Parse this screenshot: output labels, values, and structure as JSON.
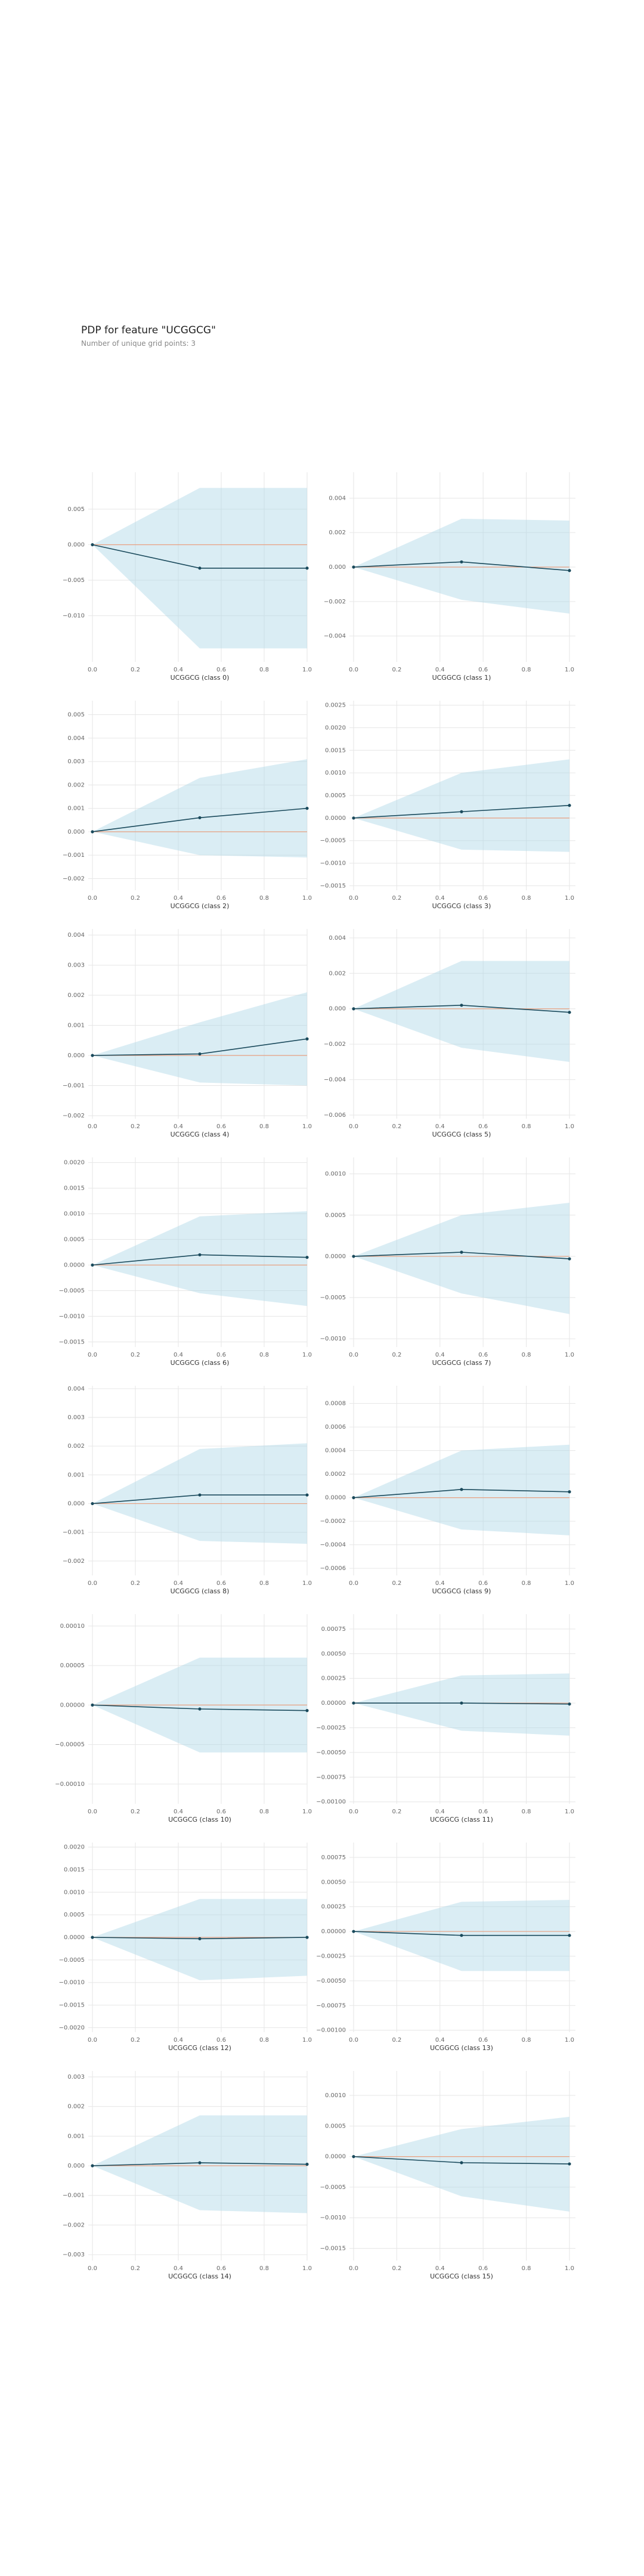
{
  "title": "PDP for feature \"UCGGCG\"",
  "subtitle": "Number of unique grid points: 3",
  "colors": {
    "line": "#1a4a5c",
    "band": "#add8e6",
    "zero_line": "#e8a080",
    "grid": "#e6e6e6"
  },
  "chart_data": [
    {
      "type": "line",
      "xlabel": "UCGGCG (class 0)",
      "x": [
        0,
        0.5,
        1
      ],
      "y": [
        0,
        -0.0033,
        -0.0033
      ],
      "upper": [
        0,
        0.008,
        0.008
      ],
      "lower": [
        0,
        -0.0146,
        -0.0146
      ],
      "ylim": [
        -0.0165,
        0.0102
      ],
      "yticks": [
        "0.005",
        "0.000",
        "−0.005",
        "−0.010"
      ],
      "ytick_values": [
        0.005,
        0,
        -0.005,
        -0.01
      ],
      "xticks": [
        "0.0",
        "0.2",
        "0.4",
        "0.6",
        "0.8",
        "1.0"
      ]
    },
    {
      "type": "line",
      "xlabel": "UCGGCG (class 1)",
      "x": [
        0,
        0.5,
        1
      ],
      "y": [
        0,
        0.0003,
        -0.0002
      ],
      "upper": [
        0,
        0.0028,
        0.0027
      ],
      "lower": [
        0,
        -0.0019,
        -0.0027
      ],
      "ylim": [
        -0.0055,
        0.0055
      ],
      "yticks": [
        "0.004",
        "0.002",
        "0.000",
        "−0.002",
        "−0.004"
      ],
      "ytick_values": [
        0.004,
        0.002,
        0,
        -0.002,
        -0.004
      ],
      "xticks": [
        "0.0",
        "0.2",
        "0.4",
        "0.6",
        "0.8",
        "1.0"
      ]
    },
    {
      "type": "line",
      "xlabel": "UCGGCG (class 2)",
      "x": [
        0,
        0.5,
        1
      ],
      "y": [
        0,
        0.0006,
        0.001
      ],
      "upper": [
        0,
        0.0023,
        0.0031
      ],
      "lower": [
        0,
        -0.001,
        -0.0011
      ],
      "ylim": [
        -0.0025,
        0.0056
      ],
      "yticks": [
        "0.005",
        "0.004",
        "0.003",
        "0.002",
        "0.001",
        "0.000",
        "−0.001",
        "−0.002"
      ],
      "ytick_values": [
        0.005,
        0.004,
        0.003,
        0.002,
        0.001,
        0,
        -0.001,
        -0.002
      ],
      "xticks": [
        "0.0",
        "0.2",
        "0.4",
        "0.6",
        "0.8",
        "1.0"
      ]
    },
    {
      "type": "line",
      "xlabel": "UCGGCG (class 3)",
      "x": [
        0,
        0.5,
        1
      ],
      "y": [
        0,
        0.00014,
        0.00028
      ],
      "upper": [
        0,
        0.001,
        0.0013
      ],
      "lower": [
        0,
        -0.0007,
        -0.00075
      ],
      "ylim": [
        -0.0016,
        0.0026
      ],
      "yticks": [
        "0.0025",
        "0.0020",
        "0.0015",
        "0.0010",
        "0.0005",
        "0.0000",
        "−0.0005",
        "−0.0010",
        "−0.0015"
      ],
      "ytick_values": [
        0.0025,
        0.002,
        0.0015,
        0.001,
        0.0005,
        0,
        -0.0005,
        -0.001,
        -0.0015
      ],
      "xticks": [
        "0.0",
        "0.2",
        "0.4",
        "0.6",
        "0.8",
        "1.0"
      ]
    },
    {
      "type": "line",
      "xlabel": "UCGGCG (class 4)",
      "x": [
        0,
        0.5,
        1
      ],
      "y": [
        0,
        5e-05,
        0.00055
      ],
      "upper": [
        0,
        0.0011,
        0.0021
      ],
      "lower": [
        0,
        -0.0009,
        -0.001
      ],
      "ylim": [
        -0.0021,
        0.0042
      ],
      "yticks": [
        "0.004",
        "0.003",
        "0.002",
        "0.001",
        "0.000",
        "−0.001",
        "−0.002"
      ],
      "ytick_values": [
        0.004,
        0.003,
        0.002,
        0.001,
        0,
        -0.001,
        -0.002
      ],
      "xticks": [
        "0.0",
        "0.2",
        "0.4",
        "0.6",
        "0.8",
        "1.0"
      ]
    },
    {
      "type": "line",
      "xlabel": "UCGGCG (class 5)",
      "x": [
        0,
        0.5,
        1
      ],
      "y": [
        0,
        0.0002,
        -0.0002
      ],
      "upper": [
        0,
        0.0027,
        0.0027
      ],
      "lower": [
        0,
        -0.0022,
        -0.003
      ],
      "ylim": [
        -0.0062,
        0.0045
      ],
      "yticks": [
        "0.004",
        "0.002",
        "0.000",
        "−0.002",
        "−0.004",
        "−0.006"
      ],
      "ytick_values": [
        0.004,
        0.002,
        0,
        -0.002,
        -0.004,
        -0.006
      ],
      "xticks": [
        "0.0",
        "0.2",
        "0.4",
        "0.6",
        "0.8",
        "1.0"
      ]
    },
    {
      "type": "line",
      "xlabel": "UCGGCG (class 6)",
      "x": [
        0,
        0.5,
        1
      ],
      "y": [
        0,
        0.0002,
        0.00015
      ],
      "upper": [
        0,
        0.00095,
        0.00105
      ],
      "lower": [
        0,
        -0.00055,
        -0.0008
      ],
      "ylim": [
        -0.0016,
        0.0021
      ],
      "yticks": [
        "0.0020",
        "0.0015",
        "0.0010",
        "0.0005",
        "0.0000",
        "−0.0005",
        "−0.0010",
        "−0.0015"
      ],
      "ytick_values": [
        0.002,
        0.0015,
        0.001,
        0.0005,
        0,
        -0.0005,
        -0.001,
        -0.0015
      ],
      "xticks": [
        "0.0",
        "0.2",
        "0.4",
        "0.6",
        "0.8",
        "1.0"
      ]
    },
    {
      "type": "line",
      "xlabel": "UCGGCG (class 7)",
      "x": [
        0,
        0.5,
        1
      ],
      "y": [
        0,
        5e-05,
        -3e-05
      ],
      "upper": [
        0,
        0.0005,
        0.00065
      ],
      "lower": [
        0,
        -0.00045,
        -0.0007
      ],
      "ylim": [
        -0.0011,
        0.0012
      ],
      "yticks": [
        "0.0010",
        "0.0005",
        "0.0000",
        "−0.0005",
        "−0.0010"
      ],
      "ytick_values": [
        0.001,
        0.0005,
        0,
        -0.0005,
        -0.001
      ],
      "xticks": [
        "0.0",
        "0.2",
        "0.4",
        "0.6",
        "0.8",
        "1.0"
      ]
    },
    {
      "type": "line",
      "xlabel": "UCGGCG (class 8)",
      "x": [
        0,
        0.5,
        1
      ],
      "y": [
        0,
        0.0003,
        0.0003
      ],
      "upper": [
        0,
        0.0019,
        0.0021
      ],
      "lower": [
        0,
        -0.0013,
        -0.0014
      ],
      "ylim": [
        -0.0025,
        0.0041
      ],
      "yticks": [
        "0.004",
        "0.003",
        "0.002",
        "0.001",
        "0.000",
        "−0.001",
        "−0.002"
      ],
      "ytick_values": [
        0.004,
        0.003,
        0.002,
        0.001,
        0,
        -0.001,
        -0.002
      ],
      "xticks": [
        "0.0",
        "0.2",
        "0.4",
        "0.6",
        "0.8",
        "1.0"
      ]
    },
    {
      "type": "line",
      "xlabel": "UCGGCG (class 9)",
      "x": [
        0,
        0.5,
        1
      ],
      "y": [
        0,
        7e-05,
        5e-05
      ],
      "upper": [
        0,
        0.0004,
        0.00045
      ],
      "lower": [
        0,
        -0.00027,
        -0.00032
      ],
      "ylim": [
        -0.00066,
        0.00095
      ],
      "yticks": [
        "0.0008",
        "0.0006",
        "0.0004",
        "0.0002",
        "0.0000",
        "−0.0002",
        "−0.0004",
        "−0.0006"
      ],
      "ytick_values": [
        0.0008,
        0.0006,
        0.0004,
        0.0002,
        0,
        -0.0002,
        -0.0004,
        -0.0006
      ],
      "xticks": [
        "0.0",
        "0.2",
        "0.4",
        "0.6",
        "0.8",
        "1.0"
      ]
    },
    {
      "type": "line",
      "xlabel": "UCGGCG (class 10)",
      "x": [
        0,
        0.5,
        1
      ],
      "y": [
        0,
        -5e-06,
        -7e-06
      ],
      "upper": [
        0,
        6e-05,
        6e-05
      ],
      "lower": [
        0,
        -6e-05,
        -6e-05
      ],
      "ylim": [
        -0.000125,
        0.000115
      ],
      "yticks": [
        "0.00010",
        "0.00005",
        "0.00000",
        "−0.00005",
        "−0.00010"
      ],
      "ytick_values": [
        0.0001,
        5e-05,
        0,
        -5e-05,
        -0.0001
      ],
      "xticks": [
        "0.0",
        "0.2",
        "0.4",
        "0.6",
        "0.8",
        "1.0"
      ]
    },
    {
      "type": "line",
      "xlabel": "UCGGCG (class 11)",
      "x": [
        0,
        0.5,
        1
      ],
      "y": [
        0,
        0,
        -1e-05
      ],
      "upper": [
        0,
        0.00028,
        0.0003
      ],
      "lower": [
        0,
        -0.00028,
        -0.00033
      ],
      "ylim": [
        -0.00102,
        0.0009
      ],
      "yticks": [
        "0.00075",
        "0.00050",
        "0.00025",
        "0.00000",
        "−0.00025",
        "−0.00050",
        "−0.00075",
        "−0.00100"
      ],
      "ytick_values": [
        0.00075,
        0.0005,
        0.00025,
        0,
        -0.00025,
        -0.0005,
        -0.00075,
        -0.001
      ],
      "xticks": [
        "0.0",
        "0.2",
        "0.4",
        "0.6",
        "0.8",
        "1.0"
      ]
    },
    {
      "type": "line",
      "xlabel": "UCGGCG (class 12)",
      "x": [
        0,
        0.5,
        1
      ],
      "y": [
        0,
        -3e-05,
        0
      ],
      "upper": [
        0,
        0.00085,
        0.00085
      ],
      "lower": [
        0,
        -0.00095,
        -0.00085
      ],
      "ylim": [
        -0.0021,
        0.0021
      ],
      "yticks": [
        "0.0020",
        "0.0015",
        "0.0010",
        "0.0005",
        "0.0000",
        "−0.0005",
        "−0.0010",
        "−0.0015",
        "−0.0020"
      ],
      "ytick_values": [
        0.002,
        0.0015,
        0.001,
        0.0005,
        0,
        -0.0005,
        -0.001,
        -0.0015,
        -0.002
      ],
      "xticks": [
        "0.0",
        "0.2",
        "0.4",
        "0.6",
        "0.8",
        "1.0"
      ]
    },
    {
      "type": "line",
      "xlabel": "UCGGCG (class 13)",
      "x": [
        0,
        0.5,
        1
      ],
      "y": [
        0,
        -4e-05,
        -4e-05
      ],
      "upper": [
        0,
        0.0003,
        0.00032
      ],
      "lower": [
        0,
        -0.0004,
        -0.0004
      ],
      "ylim": [
        -0.00102,
        0.0009
      ],
      "yticks": [
        "0.00075",
        "0.00050",
        "0.00025",
        "0.00000",
        "−0.00025",
        "−0.00050",
        "−0.00075",
        "−0.00100"
      ],
      "ytick_values": [
        0.00075,
        0.0005,
        0.00025,
        0,
        -0.00025,
        -0.0005,
        -0.00075,
        -0.001
      ],
      "xticks": [
        "0.0",
        "0.2",
        "0.4",
        "0.6",
        "0.8",
        "1.0"
      ]
    },
    {
      "type": "line",
      "xlabel": "UCGGCG (class 14)",
      "x": [
        0,
        0.5,
        1
      ],
      "y": [
        0,
        0.0001,
        5e-05
      ],
      "upper": [
        0,
        0.0017,
        0.0017
      ],
      "lower": [
        0,
        -0.0015,
        -0.0016
      ],
      "ylim": [
        -0.0032,
        0.0032
      ],
      "yticks": [
        "0.003",
        "0.002",
        "0.001",
        "0.000",
        "−0.001",
        "−0.002",
        "−0.003"
      ],
      "ytick_values": [
        0.003,
        0.002,
        0.001,
        0,
        -0.001,
        -0.002,
        -0.003
      ],
      "xticks": [
        "0.0",
        "0.2",
        "0.4",
        "0.6",
        "0.8",
        "1.0"
      ]
    },
    {
      "type": "line",
      "xlabel": "UCGGCG (class 15)",
      "x": [
        0,
        0.5,
        1
      ],
      "y": [
        0,
        -0.0001,
        -0.00012
      ],
      "upper": [
        0,
        0.00045,
        0.00065
      ],
      "lower": [
        0,
        -0.00065,
        -0.0009
      ],
      "ylim": [
        -0.0017,
        0.0014
      ],
      "yticks": [
        "0.0010",
        "0.0005",
        "0.0000",
        "−0.0005",
        "−0.0010",
        "−0.0015"
      ],
      "ytick_values": [
        0.001,
        0.0005,
        0,
        -0.0005,
        -0.001,
        -0.0015
      ],
      "xticks": [
        "0.0",
        "0.2",
        "0.4",
        "0.6",
        "0.8",
        "1.0"
      ]
    }
  ]
}
